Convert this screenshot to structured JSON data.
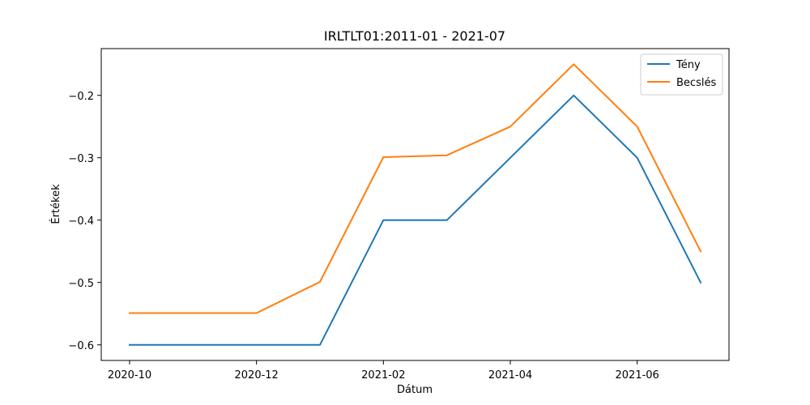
{
  "chart_data": {
    "type": "line",
    "title": "IRLTLT01:2011-01 - 2021-07",
    "xlabel": "Dátum",
    "ylabel": "Értékek",
    "x": [
      "2020-10",
      "2020-11",
      "2020-12",
      "2021-01",
      "2021-02",
      "2021-03",
      "2021-04",
      "2021-05",
      "2021-06",
      "2021-07"
    ],
    "x_tick_labels": [
      "2020-10",
      "2020-12",
      "2021-02",
      "2021-04",
      "2021-06"
    ],
    "y_ticks": [
      -0.6,
      -0.5,
      -0.4,
      -0.3,
      -0.2
    ],
    "y_tick_labels": [
      "−0.6",
      "−0.5",
      "−0.4",
      "−0.3",
      "−0.2"
    ],
    "ylim": [
      -0.625,
      -0.125
    ],
    "grid": false,
    "legend_position": "top-right",
    "series": [
      {
        "name": "Tény",
        "color": "#1f77b4",
        "values": [
          -0.6,
          -0.6,
          -0.6,
          -0.6,
          -0.4,
          -0.4,
          -0.3,
          -0.2,
          -0.3,
          -0.5
        ]
      },
      {
        "name": "Becslés",
        "color": "#ff7f0e",
        "values": [
          -0.549,
          -0.549,
          -0.549,
          -0.499,
          -0.299,
          -0.296,
          -0.25,
          -0.15,
          -0.25,
          -0.45
        ]
      }
    ]
  }
}
